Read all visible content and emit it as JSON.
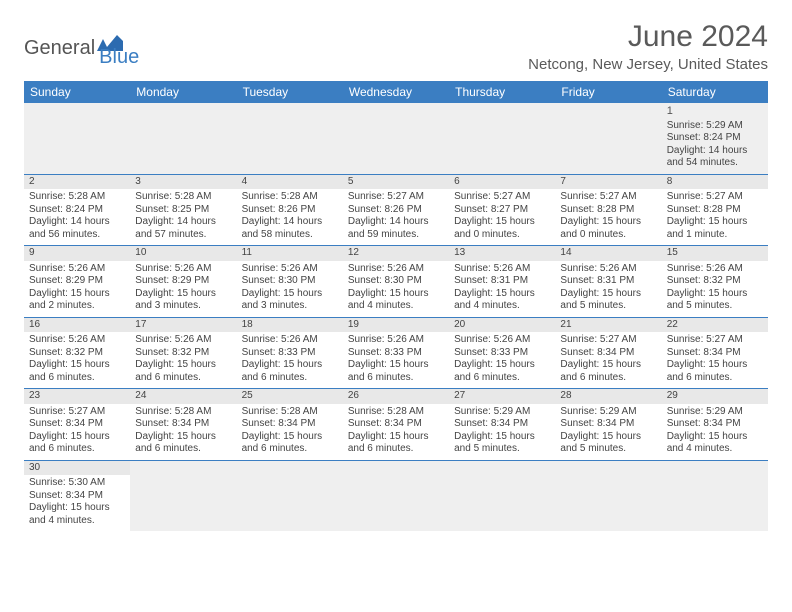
{
  "logo": {
    "general": "General",
    "blue": "Blue",
    "icon_color": "#2c6bb0"
  },
  "title": "June 2024",
  "location": "Netcong, New Jersey, United States",
  "header_bg": "#3b7ec2",
  "weekdays": [
    "Sunday",
    "Monday",
    "Tuesday",
    "Wednesday",
    "Thursday",
    "Friday",
    "Saturday"
  ],
  "weeks": [
    [
      null,
      null,
      null,
      null,
      null,
      null,
      {
        "n": "1",
        "sr": "Sunrise: 5:29 AM",
        "ss": "Sunset: 8:24 PM",
        "dl": "Daylight: 14 hours and 54 minutes."
      }
    ],
    [
      {
        "n": "2",
        "sr": "Sunrise: 5:28 AM",
        "ss": "Sunset: 8:24 PM",
        "dl": "Daylight: 14 hours and 56 minutes."
      },
      {
        "n": "3",
        "sr": "Sunrise: 5:28 AM",
        "ss": "Sunset: 8:25 PM",
        "dl": "Daylight: 14 hours and 57 minutes."
      },
      {
        "n": "4",
        "sr": "Sunrise: 5:28 AM",
        "ss": "Sunset: 8:26 PM",
        "dl": "Daylight: 14 hours and 58 minutes."
      },
      {
        "n": "5",
        "sr": "Sunrise: 5:27 AM",
        "ss": "Sunset: 8:26 PM",
        "dl": "Daylight: 14 hours and 59 minutes."
      },
      {
        "n": "6",
        "sr": "Sunrise: 5:27 AM",
        "ss": "Sunset: 8:27 PM",
        "dl": "Daylight: 15 hours and 0 minutes."
      },
      {
        "n": "7",
        "sr": "Sunrise: 5:27 AM",
        "ss": "Sunset: 8:28 PM",
        "dl": "Daylight: 15 hours and 0 minutes."
      },
      {
        "n": "8",
        "sr": "Sunrise: 5:27 AM",
        "ss": "Sunset: 8:28 PM",
        "dl": "Daylight: 15 hours and 1 minute."
      }
    ],
    [
      {
        "n": "9",
        "sr": "Sunrise: 5:26 AM",
        "ss": "Sunset: 8:29 PM",
        "dl": "Daylight: 15 hours and 2 minutes."
      },
      {
        "n": "10",
        "sr": "Sunrise: 5:26 AM",
        "ss": "Sunset: 8:29 PM",
        "dl": "Daylight: 15 hours and 3 minutes."
      },
      {
        "n": "11",
        "sr": "Sunrise: 5:26 AM",
        "ss": "Sunset: 8:30 PM",
        "dl": "Daylight: 15 hours and 3 minutes."
      },
      {
        "n": "12",
        "sr": "Sunrise: 5:26 AM",
        "ss": "Sunset: 8:30 PM",
        "dl": "Daylight: 15 hours and 4 minutes."
      },
      {
        "n": "13",
        "sr": "Sunrise: 5:26 AM",
        "ss": "Sunset: 8:31 PM",
        "dl": "Daylight: 15 hours and 4 minutes."
      },
      {
        "n": "14",
        "sr": "Sunrise: 5:26 AM",
        "ss": "Sunset: 8:31 PM",
        "dl": "Daylight: 15 hours and 5 minutes."
      },
      {
        "n": "15",
        "sr": "Sunrise: 5:26 AM",
        "ss": "Sunset: 8:32 PM",
        "dl": "Daylight: 15 hours and 5 minutes."
      }
    ],
    [
      {
        "n": "16",
        "sr": "Sunrise: 5:26 AM",
        "ss": "Sunset: 8:32 PM",
        "dl": "Daylight: 15 hours and 6 minutes."
      },
      {
        "n": "17",
        "sr": "Sunrise: 5:26 AM",
        "ss": "Sunset: 8:32 PM",
        "dl": "Daylight: 15 hours and 6 minutes."
      },
      {
        "n": "18",
        "sr": "Sunrise: 5:26 AM",
        "ss": "Sunset: 8:33 PM",
        "dl": "Daylight: 15 hours and 6 minutes."
      },
      {
        "n": "19",
        "sr": "Sunrise: 5:26 AM",
        "ss": "Sunset: 8:33 PM",
        "dl": "Daylight: 15 hours and 6 minutes."
      },
      {
        "n": "20",
        "sr": "Sunrise: 5:26 AM",
        "ss": "Sunset: 8:33 PM",
        "dl": "Daylight: 15 hours and 6 minutes."
      },
      {
        "n": "21",
        "sr": "Sunrise: 5:27 AM",
        "ss": "Sunset: 8:34 PM",
        "dl": "Daylight: 15 hours and 6 minutes."
      },
      {
        "n": "22",
        "sr": "Sunrise: 5:27 AM",
        "ss": "Sunset: 8:34 PM",
        "dl": "Daylight: 15 hours and 6 minutes."
      }
    ],
    [
      {
        "n": "23",
        "sr": "Sunrise: 5:27 AM",
        "ss": "Sunset: 8:34 PM",
        "dl": "Daylight: 15 hours and 6 minutes."
      },
      {
        "n": "24",
        "sr": "Sunrise: 5:28 AM",
        "ss": "Sunset: 8:34 PM",
        "dl": "Daylight: 15 hours and 6 minutes."
      },
      {
        "n": "25",
        "sr": "Sunrise: 5:28 AM",
        "ss": "Sunset: 8:34 PM",
        "dl": "Daylight: 15 hours and 6 minutes."
      },
      {
        "n": "26",
        "sr": "Sunrise: 5:28 AM",
        "ss": "Sunset: 8:34 PM",
        "dl": "Daylight: 15 hours and 6 minutes."
      },
      {
        "n": "27",
        "sr": "Sunrise: 5:29 AM",
        "ss": "Sunset: 8:34 PM",
        "dl": "Daylight: 15 hours and 5 minutes."
      },
      {
        "n": "28",
        "sr": "Sunrise: 5:29 AM",
        "ss": "Sunset: 8:34 PM",
        "dl": "Daylight: 15 hours and 5 minutes."
      },
      {
        "n": "29",
        "sr": "Sunrise: 5:29 AM",
        "ss": "Sunset: 8:34 PM",
        "dl": "Daylight: 15 hours and 4 minutes."
      }
    ],
    [
      {
        "n": "30",
        "sr": "Sunrise: 5:30 AM",
        "ss": "Sunset: 8:34 PM",
        "dl": "Daylight: 15 hours and 4 minutes."
      },
      null,
      null,
      null,
      null,
      null,
      null
    ]
  ]
}
